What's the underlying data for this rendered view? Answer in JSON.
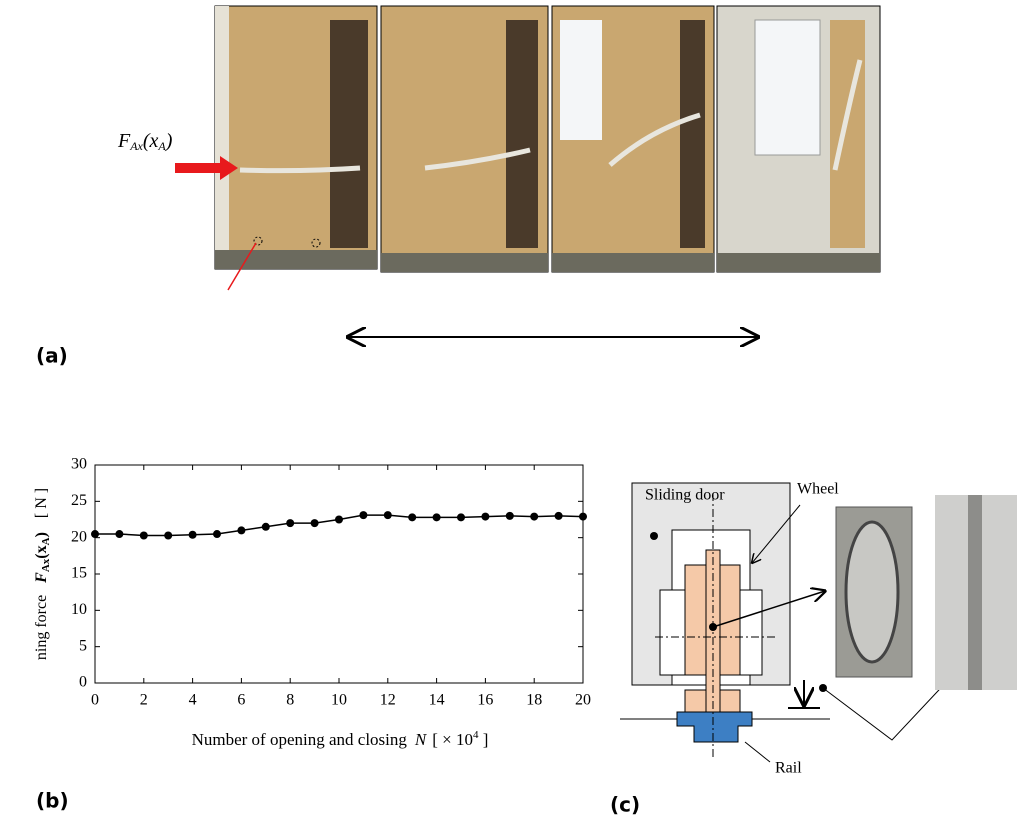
{
  "panel_a": {
    "label": "(a)",
    "force_symbol": [
      "F",
      "Ax",
      "(x",
      "A",
      ")"
    ]
  },
  "chart_data": {
    "type": "line",
    "panel_label": "(b)",
    "ylabel": "ning force",
    "ylabel_symbol": [
      "F",
      "Ax",
      "(x",
      "A",
      ")"
    ],
    "ylabel_unit": "[ N ]",
    "xlabel": "Number of opening and closing",
    "xlabel_symbol": "N",
    "xlabel_unit": [
      "[ × 10",
      "4",
      " ]"
    ],
    "x": [
      0,
      1,
      2,
      3,
      4,
      5,
      6,
      7,
      8,
      9,
      10,
      11,
      12,
      13,
      14,
      15,
      16,
      17,
      18,
      19,
      20
    ],
    "series": [
      {
        "color": "#000000",
        "values": [
          20.5,
          20.5,
          20.3,
          20.3,
          20.4,
          20.5,
          21.0,
          21.5,
          22.0,
          22.0,
          22.5,
          23.1,
          23.1,
          22.8,
          22.8,
          22.8,
          22.9,
          23.0,
          22.9,
          23.0,
          22.9
        ]
      }
    ],
    "xlim": [
      0,
      20
    ],
    "xticks": [
      0,
      2,
      4,
      6,
      8,
      10,
      12,
      14,
      16,
      18,
      20
    ],
    "ylim": [
      0,
      30
    ],
    "yticks": [
      0,
      5,
      10,
      15,
      20,
      25,
      30
    ]
  },
  "panel_c": {
    "label": "(c)",
    "sliding_door": "Sliding door",
    "wheel": "Wheel",
    "rail": "Rail"
  }
}
